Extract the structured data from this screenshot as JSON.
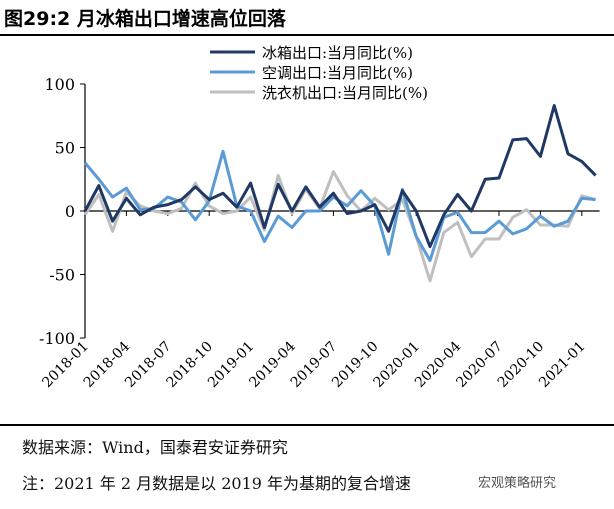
{
  "title": "图29:2 月冰箱出口增速高位回落",
  "source": "数据来源：Wind，国泰君安证券研究",
  "note": "注：2021 年 2 月数据是以 2019 年为基期的复合增速",
  "watermark": "宏观策略研究",
  "chart_data": {
    "type": "line",
    "title": "图29:2 月冰箱出口增速高位回落",
    "xlabel": "",
    "ylabel": "",
    "ylim": [
      -100,
      100
    ],
    "yticks": [
      100,
      50,
      0,
      -50,
      -100
    ],
    "xtick_labels": [
      "2018-01",
      "2018-04",
      "2018-07",
      "2018-10",
      "2019-01",
      "2019-04",
      "2019-07",
      "2019-10",
      "2020-01",
      "2020-04",
      "2020-07",
      "2020-10",
      "2021-01"
    ],
    "x_start": "2018-01",
    "x_end": "2021-02",
    "legend_position": "top-right",
    "series": [
      {
        "name": "冰箱出口:当月同比(%)",
        "color": "#1f3864",
        "values": [
          0,
          20,
          -8,
          10,
          -3,
          3,
          5,
          9,
          19,
          9,
          14,
          3,
          22,
          -13,
          21,
          0,
          19,
          3,
          14,
          -2,
          0,
          5,
          -16,
          16,
          0,
          -28,
          -3,
          13,
          0,
          25,
          26,
          56,
          57,
          43,
          83,
          45,
          39,
          28
        ]
      },
      {
        "name": "空调出口:当月同比(%)",
        "color": "#5b9bd5",
        "values": [
          38,
          25,
          11,
          18,
          1,
          2,
          11,
          7,
          -7,
          8,
          47,
          4,
          0,
          -24,
          -4,
          -13,
          0,
          0,
          11,
          4,
          16,
          4,
          -34,
          17,
          -20,
          -39,
          -5,
          -1,
          -17,
          -17,
          -8,
          -18,
          -14,
          -4,
          -12,
          -8,
          10,
          9
        ]
      },
      {
        "name": "洗衣机出口:当月同比(%)",
        "color": "#bfbfbf",
        "values": [
          -3,
          13,
          -16,
          15,
          4,
          0,
          -2,
          2,
          22,
          4,
          -2,
          0,
          11,
          -15,
          28,
          -2,
          17,
          2,
          31,
          12,
          0,
          10,
          1,
          9,
          -20,
          -55,
          -17,
          -9,
          -36,
          -22,
          -22,
          -5,
          1,
          -11,
          -11,
          -12,
          12,
          9
        ]
      }
    ]
  }
}
